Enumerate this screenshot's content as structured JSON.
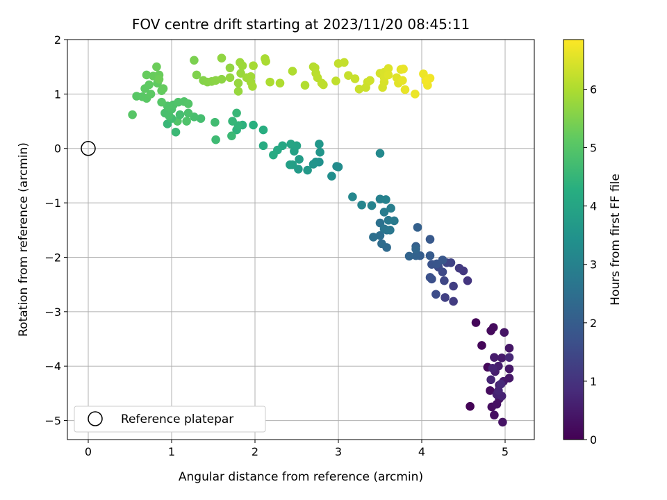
{
  "chart_data": {
    "type": "scatter",
    "title": "FOV centre drift starting at 2023/11/20 08:45:11",
    "xlabel": "Angular distance from reference (arcmin)",
    "ylabel": "Rotation from reference (arcmin)",
    "xlim": [
      -0.25,
      5.35
    ],
    "ylim": [
      -5.35,
      2.0
    ],
    "xticks": [
      0,
      1,
      2,
      3,
      4,
      5
    ],
    "yticks": [
      -5,
      -4,
      -3,
      -2,
      -1,
      0,
      1,
      2
    ],
    "xtick_labels": [
      "0",
      "1",
      "2",
      "3",
      "4",
      "5"
    ],
    "ytick_labels": [
      "−5",
      "−4",
      "−3",
      "−2",
      "−1",
      "0",
      "1",
      "2"
    ],
    "grid": true,
    "colormap": "viridis",
    "colorbar": {
      "label": "Hours from first FF file",
      "range": [
        0,
        6.85
      ],
      "ticks": [
        0,
        1,
        2,
        3,
        4,
        5,
        6
      ],
      "tick_labels": [
        "0",
        "1",
        "2",
        "3",
        "4",
        "5",
        "6"
      ]
    },
    "legend": {
      "position": "lower-left",
      "entries": [
        "Reference platepar"
      ]
    },
    "reference_point": {
      "x": 0,
      "y": 0
    },
    "points": [
      {
        "x": 4.58,
        "y": -4.74,
        "t": 0.05
      },
      {
        "x": 4.65,
        "y": -3.2,
        "t": 0.1
      },
      {
        "x": 4.72,
        "y": -3.62,
        "t": 0.12
      },
      {
        "x": 4.79,
        "y": -4.02,
        "t": 0.15
      },
      {
        "x": 4.83,
        "y": -3.35,
        "t": 0.18
      },
      {
        "x": 4.86,
        "y": -3.29,
        "t": 0.2
      },
      {
        "x": 4.82,
        "y": -4.45,
        "t": 0.22
      },
      {
        "x": 4.84,
        "y": -4.75,
        "t": 0.25
      },
      {
        "x": 4.87,
        "y": -4.9,
        "t": 0.28
      },
      {
        "x": 4.9,
        "y": -4.7,
        "t": 0.3
      },
      {
        "x": 4.93,
        "y": -4.6,
        "t": 0.33
      },
      {
        "x": 4.97,
        "y": -5.03,
        "t": 0.35
      },
      {
        "x": 4.99,
        "y": -3.38,
        "t": 0.38
      },
      {
        "x": 5.05,
        "y": -3.67,
        "t": 0.4
      },
      {
        "x": 5.05,
        "y": -4.05,
        "t": 0.42
      },
      {
        "x": 5.05,
        "y": -4.22,
        "t": 0.45
      },
      {
        "x": 4.98,
        "y": -4.28,
        "t": 0.48
      },
      {
        "x": 4.96,
        "y": -3.85,
        "t": 0.5
      },
      {
        "x": 4.87,
        "y": -3.84,
        "t": 0.52
      },
      {
        "x": 4.88,
        "y": -4.1,
        "t": 0.55
      },
      {
        "x": 4.92,
        "y": -4.0,
        "t": 0.58
      },
      {
        "x": 4.93,
        "y": -4.35,
        "t": 0.6
      },
      {
        "x": 4.9,
        "y": -4.52,
        "t": 0.62
      },
      {
        "x": 4.96,
        "y": -4.55,
        "t": 0.65
      },
      {
        "x": 4.85,
        "y": -4.04,
        "t": 0.68
      },
      {
        "x": 4.83,
        "y": -4.25,
        "t": 0.7
      },
      {
        "x": 4.92,
        "y": -4.45,
        "t": 0.72
      },
      {
        "x": 5.05,
        "y": -3.84,
        "t": 0.75
      },
      {
        "x": 4.95,
        "y": -4.33,
        "t": 0.78
      },
      {
        "x": 4.55,
        "y": -2.43,
        "t": 1.05
      },
      {
        "x": 4.5,
        "y": -2.25,
        "t": 1.1
      },
      {
        "x": 4.45,
        "y": -2.2,
        "t": 1.15
      },
      {
        "x": 4.38,
        "y": -2.81,
        "t": 1.2
      },
      {
        "x": 4.38,
        "y": -2.53,
        "t": 1.25
      },
      {
        "x": 4.28,
        "y": -2.74,
        "t": 1.3
      },
      {
        "x": 4.35,
        "y": -2.1,
        "t": 1.35
      },
      {
        "x": 4.3,
        "y": -2.1,
        "t": 1.4
      },
      {
        "x": 4.27,
        "y": -2.43,
        "t": 1.45
      },
      {
        "x": 4.25,
        "y": -2.27,
        "t": 1.5
      },
      {
        "x": 4.2,
        "y": -2.18,
        "t": 1.55
      },
      {
        "x": 4.17,
        "y": -2.68,
        "t": 1.6
      },
      {
        "x": 4.12,
        "y": -2.4,
        "t": 1.65
      },
      {
        "x": 4.1,
        "y": -2.37,
        "t": 1.7
      },
      {
        "x": 4.12,
        "y": -2.13,
        "t": 1.75
      },
      {
        "x": 4.18,
        "y": -2.12,
        "t": 1.8
      },
      {
        "x": 4.25,
        "y": -2.05,
        "t": 1.85
      },
      {
        "x": 4.1,
        "y": -1.67,
        "t": 1.9
      },
      {
        "x": 4.1,
        "y": -1.97,
        "t": 1.95
      },
      {
        "x": 3.98,
        "y": -1.97,
        "t": 2.0
      },
      {
        "x": 3.93,
        "y": -1.8,
        "t": 2.05
      },
      {
        "x": 3.95,
        "y": -1.45,
        "t": 2.1
      },
      {
        "x": 3.93,
        "y": -1.97,
        "t": 2.15
      },
      {
        "x": 3.85,
        "y": -1.98,
        "t": 2.2
      },
      {
        "x": 3.93,
        "y": -1.85,
        "t": 2.25
      },
      {
        "x": 3.58,
        "y": -1.82,
        "t": 2.35
      },
      {
        "x": 3.52,
        "y": -1.75,
        "t": 2.4
      },
      {
        "x": 3.5,
        "y": -1.6,
        "t": 2.45
      },
      {
        "x": 3.42,
        "y": -1.63,
        "t": 2.5
      },
      {
        "x": 3.5,
        "y": -1.37,
        "t": 2.55
      },
      {
        "x": 3.58,
        "y": -1.5,
        "t": 2.6
      },
      {
        "x": 3.55,
        "y": -1.48,
        "t": 2.65
      },
      {
        "x": 3.62,
        "y": -1.5,
        "t": 2.7
      },
      {
        "x": 3.6,
        "y": -1.32,
        "t": 2.75
      },
      {
        "x": 3.67,
        "y": -1.33,
        "t": 2.8
      },
      {
        "x": 3.55,
        "y": -1.17,
        "t": 2.85
      },
      {
        "x": 3.63,
        "y": -1.1,
        "t": 2.9
      },
      {
        "x": 3.5,
        "y": -0.93,
        "t": 2.95
      },
      {
        "x": 3.57,
        "y": -0.94,
        "t": 3.0
      },
      {
        "x": 3.4,
        "y": -1.05,
        "t": 3.05
      },
      {
        "x": 3.28,
        "y": -1.04,
        "t": 3.1
      },
      {
        "x": 3.17,
        "y": -0.89,
        "t": 3.15
      },
      {
        "x": 3.5,
        "y": -0.09,
        "t": 3.2
      },
      {
        "x": 2.98,
        "y": -0.33,
        "t": 3.25
      },
      {
        "x": 3.0,
        "y": -0.34,
        "t": 3.3
      },
      {
        "x": 2.92,
        "y": -0.51,
        "t": 3.35
      },
      {
        "x": 2.77,
        "y": -0.25,
        "t": 3.4
      },
      {
        "x": 2.73,
        "y": -0.25,
        "t": 3.45
      },
      {
        "x": 2.7,
        "y": -0.29,
        "t": 3.5
      },
      {
        "x": 2.78,
        "y": -0.07,
        "t": 3.55
      },
      {
        "x": 2.77,
        "y": 0.08,
        "t": 3.6
      },
      {
        "x": 2.63,
        "y": -0.4,
        "t": 3.65
      },
      {
        "x": 2.52,
        "y": -0.38,
        "t": 3.7
      },
      {
        "x": 2.53,
        "y": -0.2,
        "t": 3.75
      },
      {
        "x": 2.45,
        "y": -0.3,
        "t": 3.8
      },
      {
        "x": 2.42,
        "y": -0.3,
        "t": 3.85
      },
      {
        "x": 2.47,
        "y": -0.05,
        "t": 3.9
      },
      {
        "x": 2.5,
        "y": 0.05,
        "t": 3.95
      },
      {
        "x": 2.43,
        "y": 0.08,
        "t": 4.0
      },
      {
        "x": 2.33,
        "y": 0.05,
        "t": 4.05
      },
      {
        "x": 2.27,
        "y": -0.03,
        "t": 4.1
      },
      {
        "x": 2.22,
        "y": -0.12,
        "t": 4.15
      },
      {
        "x": 2.1,
        "y": 0.05,
        "t": 4.2
      },
      {
        "x": 2.1,
        "y": 0.34,
        "t": 4.25
      },
      {
        "x": 1.98,
        "y": 0.43,
        "t": 4.3
      },
      {
        "x": 1.85,
        "y": 0.43,
        "t": 4.35
      },
      {
        "x": 1.78,
        "y": 0.34,
        "t": 4.4
      },
      {
        "x": 1.8,
        "y": 0.42,
        "t": 4.45
      },
      {
        "x": 1.73,
        "y": 0.5,
        "t": 4.5
      },
      {
        "x": 1.78,
        "y": 0.65,
        "t": 4.55
      },
      {
        "x": 1.72,
        "y": 0.23,
        "t": 4.6
      },
      {
        "x": 1.53,
        "y": 0.16,
        "t": 4.65
      },
      {
        "x": 1.52,
        "y": 0.48,
        "t": 4.7
      },
      {
        "x": 1.35,
        "y": 0.55,
        "t": 4.75
      },
      {
        "x": 1.27,
        "y": 0.58,
        "t": 4.8
      },
      {
        "x": 1.2,
        "y": 0.65,
        "t": 4.85
      },
      {
        "x": 1.18,
        "y": 0.5,
        "t": 4.9
      },
      {
        "x": 1.07,
        "y": 0.5,
        "t": 4.95
      },
      {
        "x": 1.05,
        "y": 0.3,
        "t": 4.6
      },
      {
        "x": 0.95,
        "y": 0.45,
        "t": 4.55
      },
      {
        "x": 1.0,
        "y": 0.55,
        "t": 4.7
      },
      {
        "x": 1.1,
        "y": 0.62,
        "t": 4.75
      },
      {
        "x": 0.92,
        "y": 0.65,
        "t": 4.8
      },
      {
        "x": 0.97,
        "y": 0.6,
        "t": 4.82
      },
      {
        "x": 1.0,
        "y": 0.72,
        "t": 4.85
      },
      {
        "x": 1.02,
        "y": 0.8,
        "t": 4.88
      },
      {
        "x": 0.95,
        "y": 0.78,
        "t": 4.9
      },
      {
        "x": 1.08,
        "y": 0.85,
        "t": 4.92
      },
      {
        "x": 1.15,
        "y": 0.86,
        "t": 4.95
      },
      {
        "x": 1.2,
        "y": 0.82,
        "t": 4.98
      },
      {
        "x": 0.88,
        "y": 0.85,
        "t": 5.0
      },
      {
        "x": 0.53,
        "y": 0.62,
        "t": 5.02
      },
      {
        "x": 0.58,
        "y": 0.96,
        "t": 5.04
      },
      {
        "x": 0.65,
        "y": 0.95,
        "t": 5.06
      },
      {
        "x": 0.7,
        "y": 0.92,
        "t": 5.08
      },
      {
        "x": 0.75,
        "y": 1.0,
        "t": 5.1
      },
      {
        "x": 0.68,
        "y": 1.1,
        "t": 5.12
      },
      {
        "x": 0.73,
        "y": 1.17,
        "t": 5.14
      },
      {
        "x": 0.83,
        "y": 1.2,
        "t": 5.16
      },
      {
        "x": 0.88,
        "y": 1.06,
        "t": 5.18
      },
      {
        "x": 0.9,
        "y": 1.1,
        "t": 5.2
      },
      {
        "x": 0.7,
        "y": 1.35,
        "t": 5.22
      },
      {
        "x": 0.78,
        "y": 1.33,
        "t": 5.24
      },
      {
        "x": 0.85,
        "y": 1.35,
        "t": 5.26
      },
      {
        "x": 0.82,
        "y": 1.5,
        "t": 5.28
      },
      {
        "x": 0.85,
        "y": 1.27,
        "t": 5.3
      },
      {
        "x": 1.27,
        "y": 1.62,
        "t": 5.45
      },
      {
        "x": 1.3,
        "y": 1.35,
        "t": 5.5
      },
      {
        "x": 1.38,
        "y": 1.25,
        "t": 5.55
      },
      {
        "x": 1.43,
        "y": 1.22,
        "t": 5.58
      },
      {
        "x": 1.48,
        "y": 1.23,
        "t": 5.6
      },
      {
        "x": 1.53,
        "y": 1.25,
        "t": 5.62
      },
      {
        "x": 1.6,
        "y": 1.27,
        "t": 5.65
      },
      {
        "x": 1.6,
        "y": 1.66,
        "t": 5.68
      },
      {
        "x": 1.7,
        "y": 1.48,
        "t": 5.7
      },
      {
        "x": 1.7,
        "y": 1.3,
        "t": 5.72
      },
      {
        "x": 1.8,
        "y": 1.2,
        "t": 5.74
      },
      {
        "x": 1.8,
        "y": 1.05,
        "t": 5.76
      },
      {
        "x": 1.83,
        "y": 1.38,
        "t": 5.78
      },
      {
        "x": 1.82,
        "y": 1.58,
        "t": 5.8
      },
      {
        "x": 1.85,
        "y": 1.52,
        "t": 5.82
      },
      {
        "x": 1.9,
        "y": 1.3,
        "t": 5.84
      },
      {
        "x": 1.95,
        "y": 1.32,
        "t": 5.86
      },
      {
        "x": 1.95,
        "y": 1.22,
        "t": 5.88
      },
      {
        "x": 1.97,
        "y": 1.14,
        "t": 5.9
      },
      {
        "x": 1.98,
        "y": 1.52,
        "t": 5.92
      },
      {
        "x": 2.12,
        "y": 1.65,
        "t": 5.94
      },
      {
        "x": 2.13,
        "y": 1.6,
        "t": 5.96
      },
      {
        "x": 2.18,
        "y": 1.22,
        "t": 5.98
      },
      {
        "x": 2.3,
        "y": 1.2,
        "t": 6.0
      },
      {
        "x": 2.45,
        "y": 1.42,
        "t": 6.02
      },
      {
        "x": 2.6,
        "y": 1.16,
        "t": 6.05
      },
      {
        "x": 2.7,
        "y": 1.5,
        "t": 6.08
      },
      {
        "x": 2.72,
        "y": 1.48,
        "t": 6.1
      },
      {
        "x": 2.73,
        "y": 1.38,
        "t": 6.12
      },
      {
        "x": 2.75,
        "y": 1.3,
        "t": 6.14
      },
      {
        "x": 2.8,
        "y": 1.2,
        "t": 6.16
      },
      {
        "x": 2.82,
        "y": 1.17,
        "t": 6.18
      },
      {
        "x": 2.97,
        "y": 1.24,
        "t": 6.2
      },
      {
        "x": 3.0,
        "y": 1.56,
        "t": 6.22
      },
      {
        "x": 3.07,
        "y": 1.58,
        "t": 6.24
      },
      {
        "x": 3.12,
        "y": 1.34,
        "t": 6.26
      },
      {
        "x": 3.2,
        "y": 1.28,
        "t": 6.28
      },
      {
        "x": 3.25,
        "y": 1.09,
        "t": 6.3
      },
      {
        "x": 3.33,
        "y": 1.12,
        "t": 6.32
      },
      {
        "x": 3.35,
        "y": 1.22,
        "t": 6.34
      },
      {
        "x": 3.38,
        "y": 1.25,
        "t": 6.36
      },
      {
        "x": 3.5,
        "y": 1.38,
        "t": 6.4
      },
      {
        "x": 3.53,
        "y": 1.12,
        "t": 6.42
      },
      {
        "x": 3.55,
        "y": 1.22,
        "t": 6.44
      },
      {
        "x": 3.55,
        "y": 1.4,
        "t": 6.46
      },
      {
        "x": 3.55,
        "y": 1.3,
        "t": 6.48
      },
      {
        "x": 3.6,
        "y": 1.47,
        "t": 6.5
      },
      {
        "x": 3.6,
        "y": 1.35,
        "t": 6.52
      },
      {
        "x": 3.7,
        "y": 1.3,
        "t": 6.54
      },
      {
        "x": 3.72,
        "y": 1.2,
        "t": 6.56
      },
      {
        "x": 3.75,
        "y": 1.45,
        "t": 6.58
      },
      {
        "x": 3.77,
        "y": 1.25,
        "t": 6.6
      },
      {
        "x": 3.8,
        "y": 1.08,
        "t": 6.62
      },
      {
        "x": 3.78,
        "y": 1.46,
        "t": 6.64
      },
      {
        "x": 3.92,
        "y": 1.0,
        "t": 6.66
      },
      {
        "x": 4.02,
        "y": 1.37,
        "t": 6.68
      },
      {
        "x": 4.07,
        "y": 1.16,
        "t": 6.7
      },
      {
        "x": 4.1,
        "y": 1.29,
        "t": 6.72
      },
      {
        "x": 4.05,
        "y": 1.24,
        "t": 6.74
      }
    ]
  }
}
